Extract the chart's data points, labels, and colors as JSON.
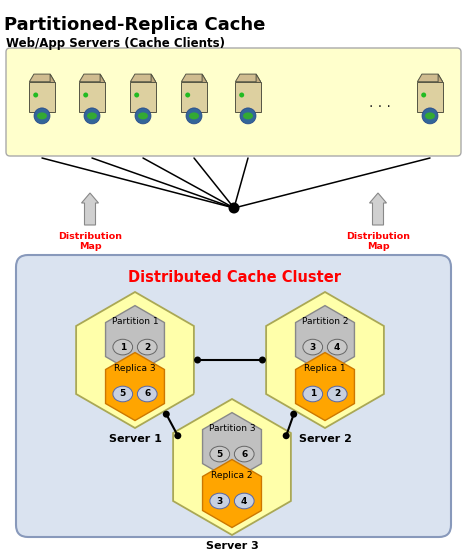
{
  "title": "Partitioned-Replica Cache",
  "subtitle": "Web/App Servers (Cache Clients)",
  "cluster_label": "Distributed Cache Cluster",
  "dist_map_label": "Distribution\nMap",
  "server_labels": [
    "Server 1",
    "Server 2",
    "Server 3"
  ],
  "partition_labels": [
    "Partition 1",
    "Partition 2",
    "Partition 3"
  ],
  "replica_labels": [
    "Replica 3",
    "Replica 1",
    "Replica 2"
  ],
  "partition_numbers": [
    [
      "1",
      "2"
    ],
    [
      "3",
      "4"
    ],
    [
      "5",
      "6"
    ]
  ],
  "replica_numbers": [
    [
      "5",
      "6"
    ],
    [
      "1",
      "2"
    ],
    [
      "3",
      "4"
    ]
  ],
  "bg_color": "#ffffff",
  "server_box_color": "#dae3f0",
  "web_box_color": "#ffffcc",
  "partition_hex_color": "#c0c0c0",
  "replica_hex_color": "#ffa500",
  "server_hex_color": "#ffffaa",
  "cluster_border_color": "#8899bb",
  "web_border_color": "#aaaaaa",
  "title_fontsize": 13,
  "subtitle_fontsize": 8.5,
  "cluster_fontsize": 10.5
}
